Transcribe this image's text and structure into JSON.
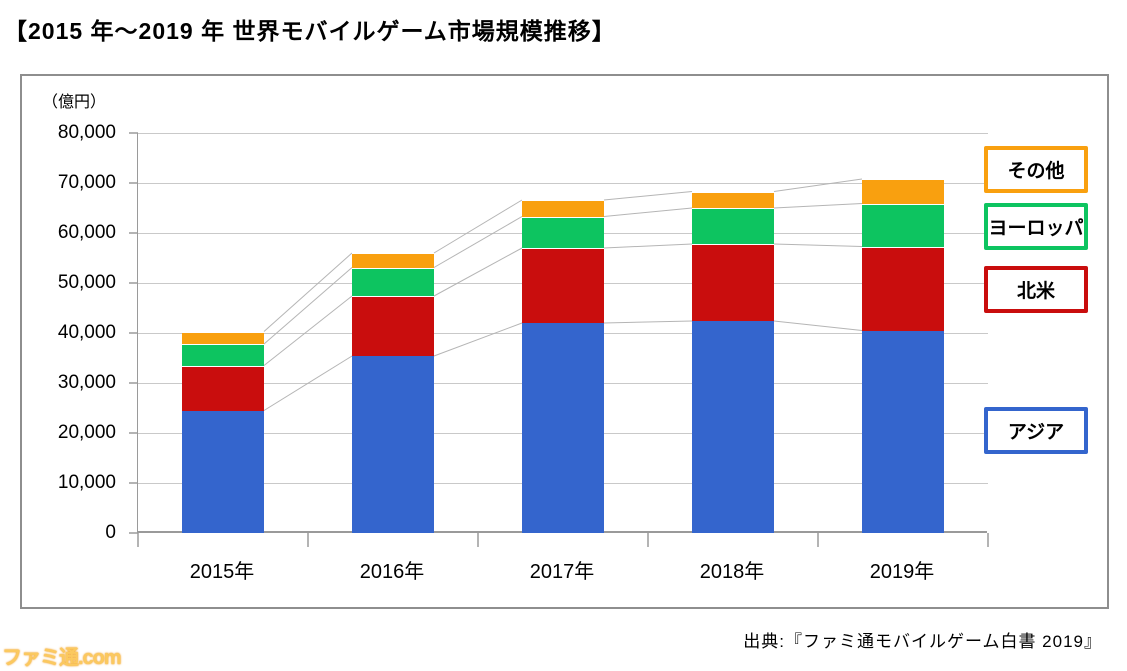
{
  "page": {
    "title": "【2015 年～2019 年 世界モバイルゲーム市場規模推移】",
    "source": "出典:『ファミ通モバイルゲーム白書 2019』",
    "watermark": "ファミ通.com"
  },
  "chart_data": {
    "type": "bar",
    "subtype": "stacked-column",
    "title": "【2015 年～2019 年 世界モバイルゲーム市場規模推移】",
    "unit_label": "（億円）",
    "xlabel": "",
    "ylabel": "億円",
    "categories": [
      "2015年",
      "2016年",
      "2017年",
      "2018年",
      "2019年"
    ],
    "series": [
      {
        "name": "アジア",
        "color": "#3465cd",
        "values": [
          24500,
          35400,
          42000,
          42400,
          40500
        ]
      },
      {
        "name": "北米",
        "color": "#c90d0d",
        "values": [
          9000,
          12000,
          15000,
          15400,
          16800
        ]
      },
      {
        "name": "ヨーロッパ",
        "color": "#0dc460",
        "values": [
          4300,
          5700,
          6300,
          7200,
          8600
        ]
      },
      {
        "name": "その他",
        "color": "#f9a00f",
        "values": [
          2500,
          2900,
          3300,
          3300,
          4900
        ]
      }
    ],
    "totals": [
      40300,
      56000,
      66600,
      68300,
      70800
    ],
    "ylim": [
      0,
      80000
    ],
    "ytick_step": 10000,
    "grid": true,
    "series_lines": true,
    "legend_position": "right",
    "legend": [
      {
        "label": "その他",
        "color": "#f9a00f"
      },
      {
        "label": "ヨーロッパ",
        "color": "#0dc460"
      },
      {
        "label": "北米",
        "color": "#c90d0d"
      },
      {
        "label": "アジア",
        "color": "#3465cd"
      }
    ]
  }
}
